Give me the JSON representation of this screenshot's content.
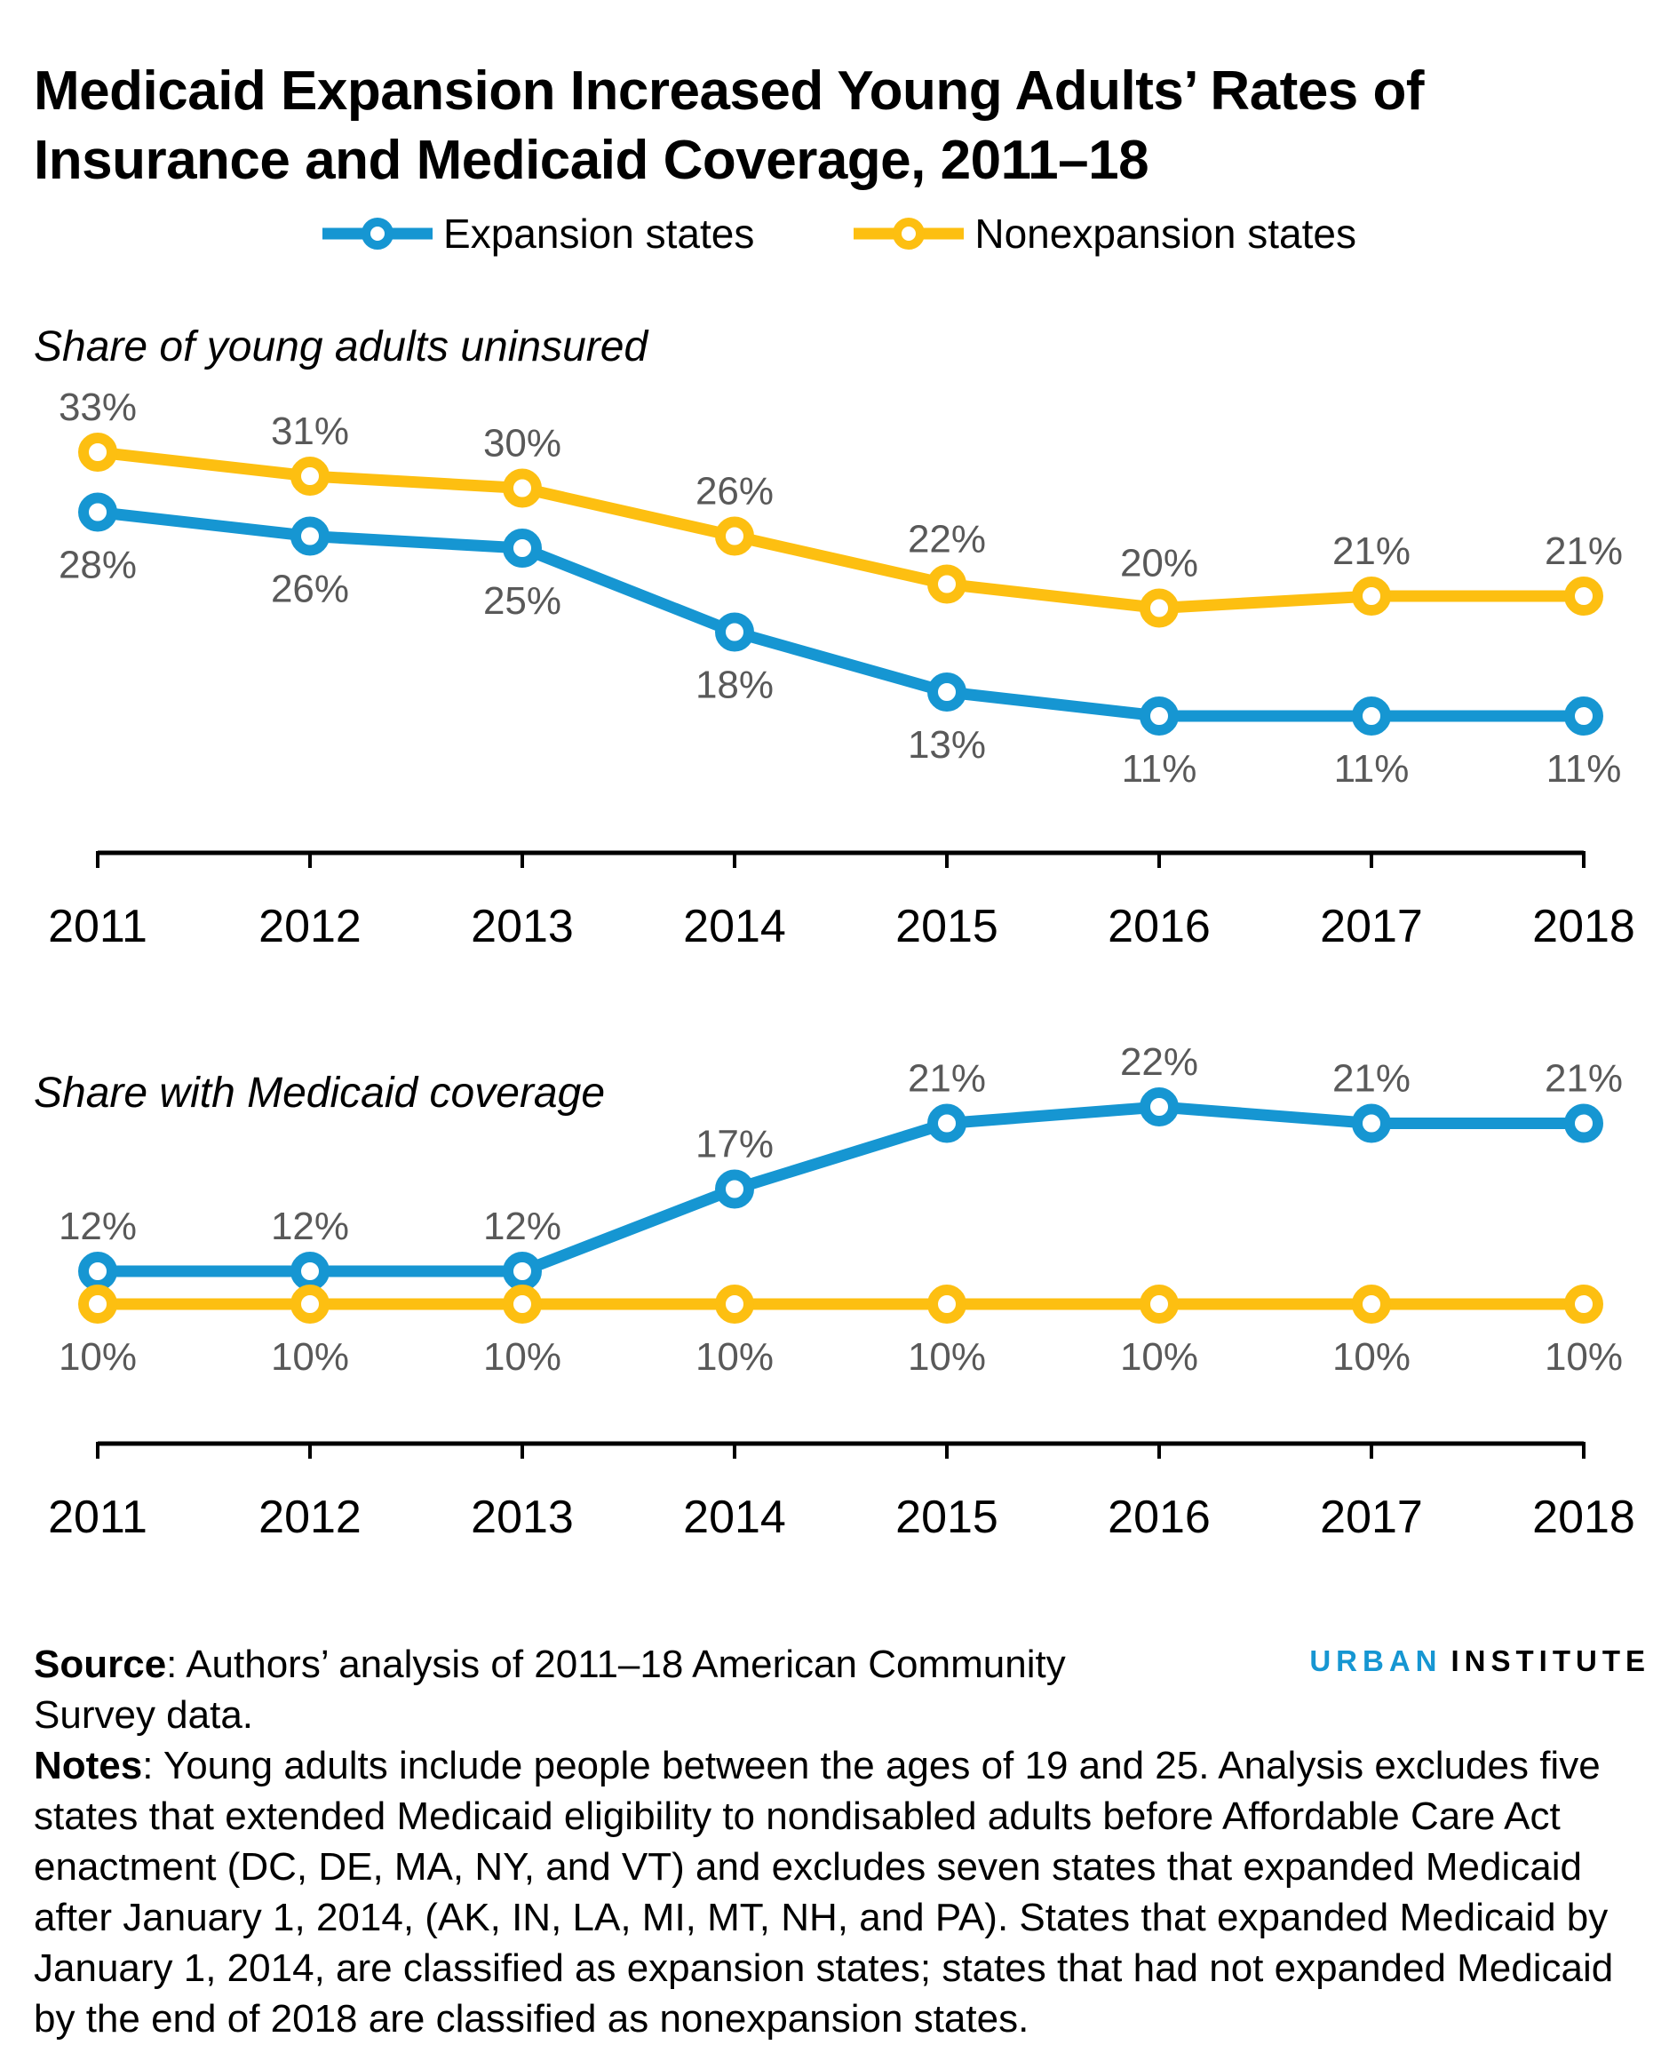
{
  "title": {
    "line1": "Medicaid Expansion Increased Young Adults’ Rates of",
    "line2": "Insurance and Medicaid Coverage, 2011–18"
  },
  "legend": {
    "items": [
      {
        "label": "Expansion states",
        "color": "#1696d2"
      },
      {
        "label": "Nonexpansion states",
        "color": "#fdbf11"
      }
    ],
    "position": "top-center"
  },
  "colors": {
    "expansion_blue": "#1696d2",
    "nonexpansion_yellow": "#fdbf11",
    "value_label_gray": "#595959",
    "axis_black": "#000000"
  },
  "chart_data": [
    {
      "type": "line",
      "title": "Share of young adults uninsured",
      "categories": [
        "2011",
        "2012",
        "2013",
        "2014",
        "2015",
        "2016",
        "2017",
        "2018"
      ],
      "unit": "%",
      "grid": false,
      "legend_position": "top",
      "ylim": [
        8,
        36
      ],
      "series": [
        {
          "name": "Nonexpansion states",
          "color": "#fdbf11",
          "values": [
            33,
            31,
            30,
            26,
            22,
            20,
            21,
            21
          ],
          "data_labels": "above"
        },
        {
          "name": "Expansion states",
          "color": "#1696d2",
          "values": [
            28,
            26,
            25,
            18,
            13,
            11,
            11,
            11
          ],
          "data_labels": "below"
        }
      ]
    },
    {
      "type": "line",
      "title": "Share with Medicaid coverage",
      "categories": [
        "2011",
        "2012",
        "2013",
        "2014",
        "2015",
        "2016",
        "2017",
        "2018"
      ],
      "unit": "%",
      "grid": false,
      "legend_position": "top",
      "ylim": [
        7,
        24
      ],
      "series": [
        {
          "name": "Expansion states",
          "color": "#1696d2",
          "values": [
            12,
            12,
            12,
            17,
            21,
            22,
            21,
            21
          ],
          "data_labels": "above"
        },
        {
          "name": "Nonexpansion states",
          "color": "#fdbf11",
          "values": [
            10,
            10,
            10,
            10,
            10,
            10,
            10,
            10
          ],
          "data_labels": "below"
        }
      ]
    }
  ],
  "source": {
    "label": "Source",
    "text": ": Authors’ analysis of 2011–18 American Community Survey data."
  },
  "notes": {
    "label": "Notes",
    "text": ": Young adults include people between the ages of 19 and 25. Analysis excludes five states that extended Medicaid eligibility to nondisabled adults before Affordable Care Act enactment (DC, DE, MA, NY, and VT) and excludes seven states that expanded Medicaid after January 1, 2014, (AK, IN, LA, MI, MT, NH, and PA). States that expanded Medicaid by January 1, 2014, are classified as expansion states; states that had not expanded Medicaid by the end of 2018 are classified as nonexpansion states."
  },
  "logo": {
    "part1": "URBAN",
    "part2": "INSTITUTE"
  }
}
